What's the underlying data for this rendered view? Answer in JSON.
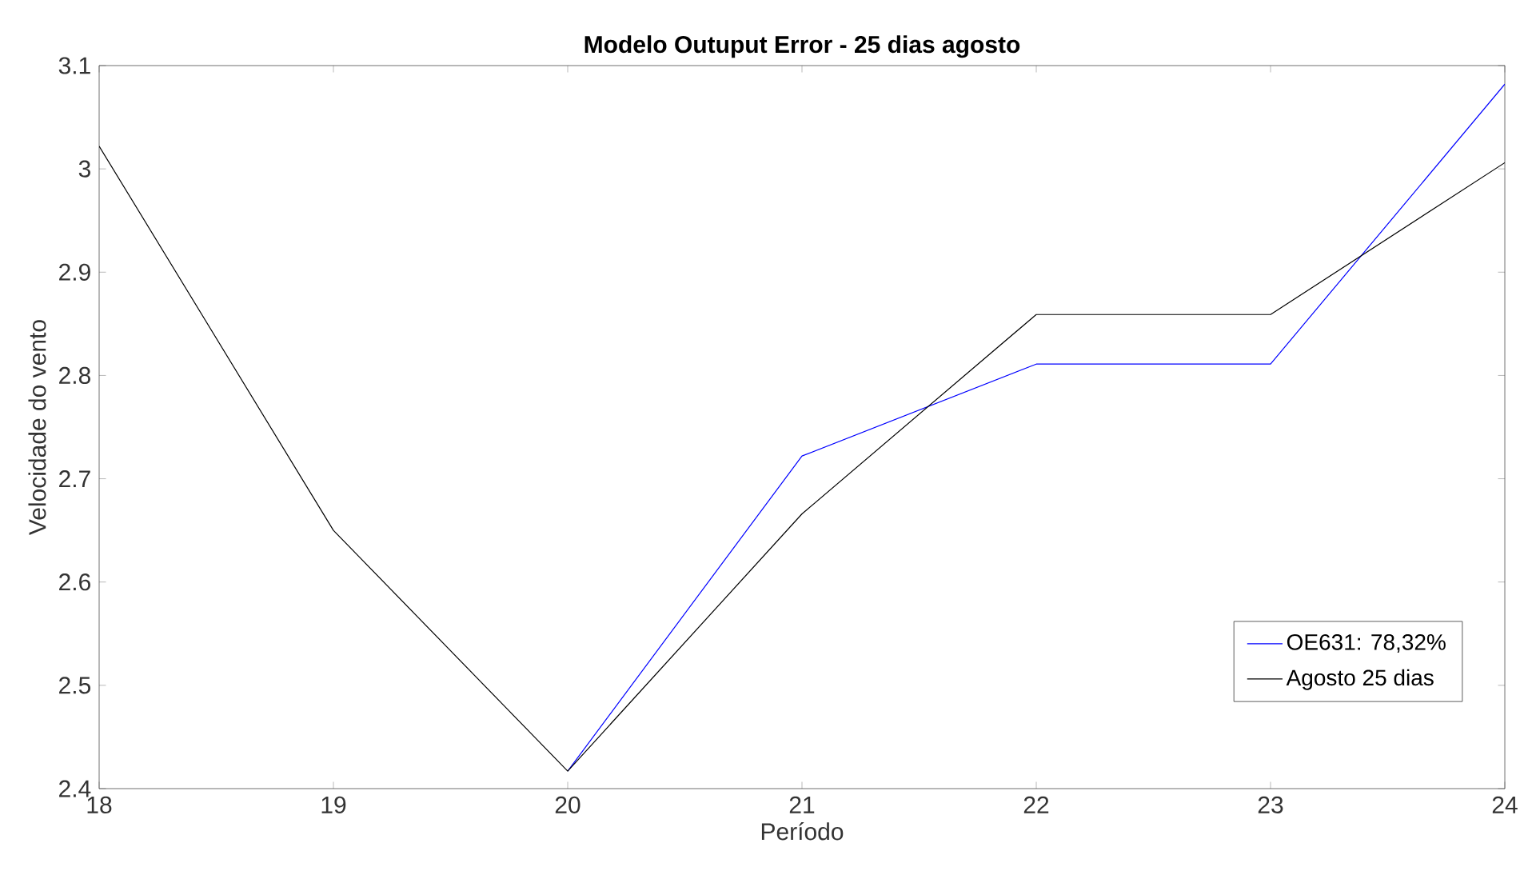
{
  "chart_data": {
    "type": "line",
    "title": "Modelo Outuput Error - 25 dias agosto",
    "xlabel": "Período",
    "ylabel": "Velocidade do vento",
    "x": [
      18,
      19,
      20,
      21,
      22,
      23,
      24
    ],
    "series": [
      {
        "name": "OE631: 78,32%",
        "color": "#0000ff",
        "x": [
          20,
          21,
          22,
          23,
          24
        ],
        "values": [
          2.417,
          2.722,
          2.811,
          2.811,
          3.082
        ]
      },
      {
        "name": "Agosto 25 dias",
        "color": "#000000",
        "values": [
          3.022,
          2.65,
          2.417,
          2.666,
          2.859,
          2.859,
          3.006
        ]
      }
    ],
    "xlim": [
      18,
      24
    ],
    "ylim": [
      2.4,
      3.1
    ],
    "xticks": [
      18,
      19,
      20,
      21,
      22,
      23,
      24
    ],
    "yticks": [
      2.4,
      2.5,
      2.6,
      2.7,
      2.8,
      2.9,
      3,
      3.1
    ],
    "legend": "bottom right",
    "marker": "none",
    "line_style": "solid",
    "grid": false
  }
}
